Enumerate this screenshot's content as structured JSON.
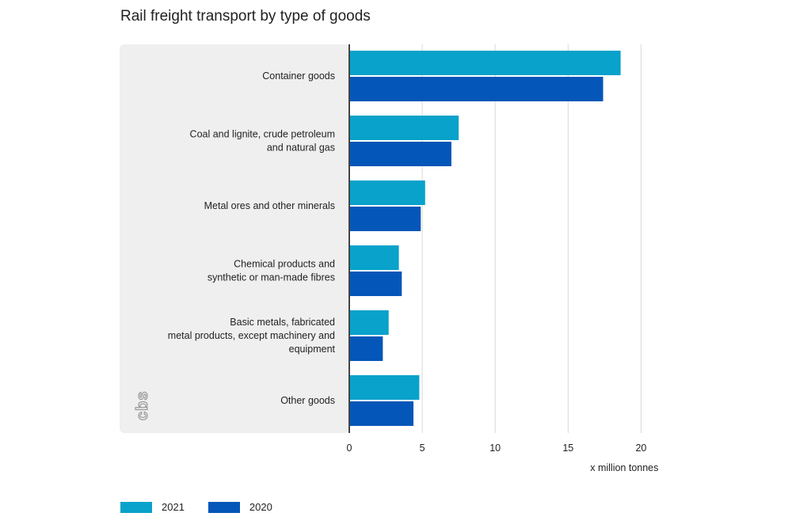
{
  "title": "Rail freight transport by type of goods",
  "colors": {
    "series_2021": "#08a2cb",
    "series_2020": "#0456b8",
    "panel": "#efefef",
    "grid": "#d9d9d9",
    "axis": "#444444"
  },
  "watermark_text": "cbs",
  "chart_data": {
    "type": "bar",
    "orientation": "horizontal",
    "title": "Rail freight transport by type of goods",
    "xlabel": "x million tonnes",
    "ylabel": "",
    "xlim": [
      0,
      20
    ],
    "xticks": [
      0,
      5,
      10,
      15,
      20
    ],
    "grid": true,
    "legend_position": "bottom-left",
    "categories": [
      [
        "Container goods"
      ],
      [
        "Coal and lignite, crude petroleum",
        "and natural gas"
      ],
      [
        "Metal ores and other minerals"
      ],
      [
        "Chemical products and",
        "synthetic or man-made fibres"
      ],
      [
        "Basic metals, fabricated",
        "metal products, except machinery and",
        "equipment"
      ],
      [
        "Other goods"
      ]
    ],
    "series": [
      {
        "name": "2021",
        "values": [
          18.6,
          7.5,
          5.2,
          3.4,
          2.7,
          4.8
        ]
      },
      {
        "name": "2020",
        "values": [
          17.4,
          7.0,
          4.9,
          3.6,
          2.3,
          4.4
        ]
      }
    ]
  }
}
